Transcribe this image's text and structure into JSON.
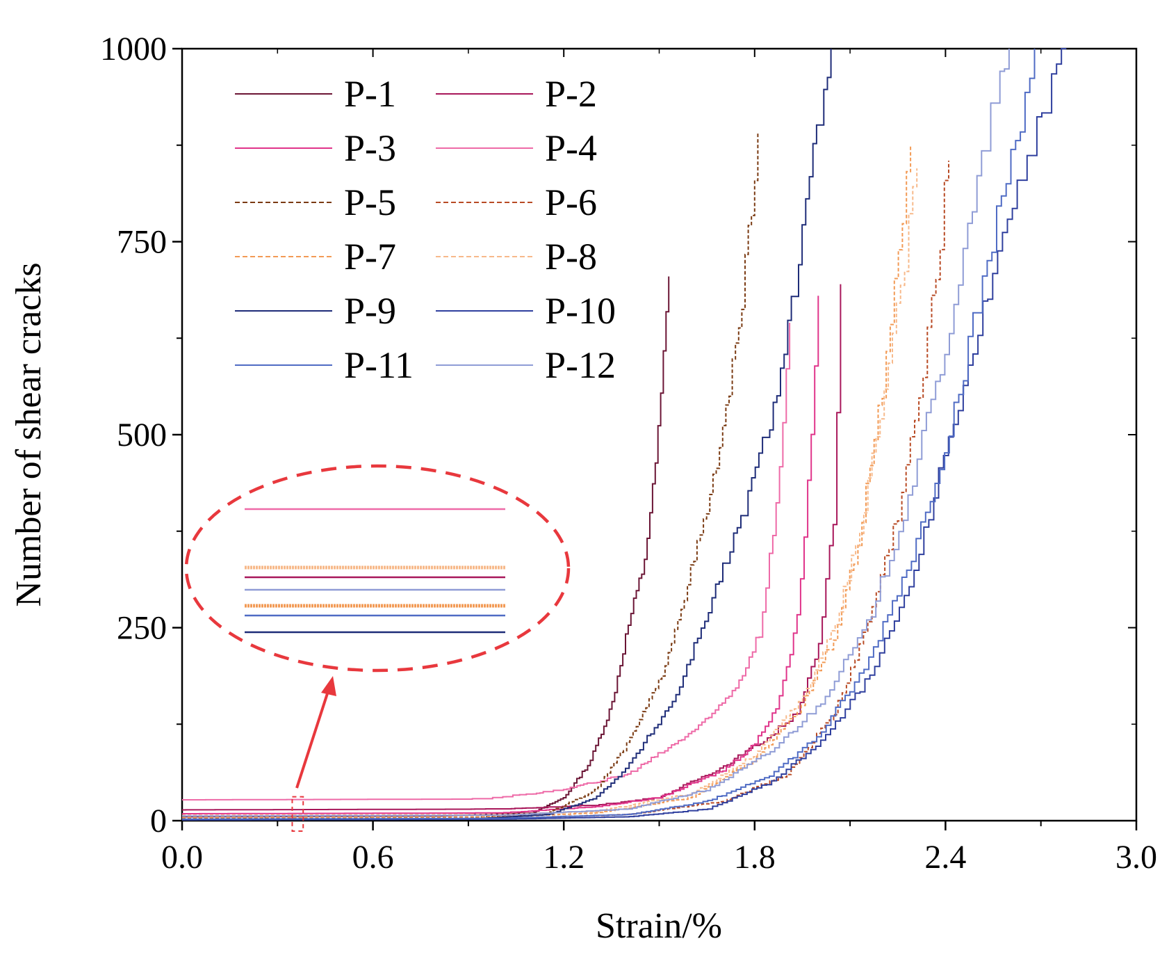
{
  "chart_data": {
    "type": "line",
    "title": "",
    "xlabel": "Strain/%",
    "ylabel": "Number of shear cracks",
    "xlim": [
      0,
      3.0
    ],
    "ylim": [
      0,
      1000
    ],
    "xticks": [
      "0.0",
      "0.6",
      "1.2",
      "1.8",
      "2.4",
      "3.0"
    ],
    "yticks": [
      "0",
      "250",
      "500",
      "750",
      "1000"
    ],
    "legend_position": "top-left",
    "series": [
      {
        "name": "P-1",
        "color": "#6b1535",
        "dash": "solid",
        "end_x": 1.53,
        "end_y": 705,
        "points": [
          [
            0,
            5
          ],
          [
            0.8,
            6
          ],
          [
            1.1,
            10
          ],
          [
            1.2,
            30
          ],
          [
            1.28,
            75
          ],
          [
            1.35,
            150
          ],
          [
            1.4,
            250
          ],
          [
            1.45,
            330
          ],
          [
            1.48,
            430
          ],
          [
            1.5,
            520
          ],
          [
            1.53,
            705
          ]
        ]
      },
      {
        "name": "P-2",
        "color": "#a8175a",
        "dash": "solid",
        "end_x": 2.07,
        "end_y": 695,
        "points": [
          [
            0,
            14
          ],
          [
            1.0,
            15
          ],
          [
            1.3,
            20
          ],
          [
            1.5,
            30
          ],
          [
            1.7,
            70
          ],
          [
            1.85,
            110
          ],
          [
            1.93,
            140
          ],
          [
            2.0,
            220
          ],
          [
            2.05,
            400
          ],
          [
            2.07,
            695
          ]
        ]
      },
      {
        "name": "P-3",
        "color": "#e0348a",
        "dash": "solid",
        "end_x": 2.0,
        "end_y": 680,
        "points": [
          [
            0,
            9
          ],
          [
            1.0,
            10
          ],
          [
            1.3,
            18
          ],
          [
            1.5,
            30
          ],
          [
            1.7,
            65
          ],
          [
            1.8,
            100
          ],
          [
            1.87,
            150
          ],
          [
            1.93,
            250
          ],
          [
            1.97,
            450
          ],
          [
            2.0,
            680
          ]
        ]
      },
      {
        "name": "P-4",
        "color": "#ee6aa7",
        "dash": "solid",
        "end_x": 1.91,
        "end_y": 645,
        "points": [
          [
            0,
            27
          ],
          [
            0.95,
            28
          ],
          [
            1.2,
            40
          ],
          [
            1.4,
            60
          ],
          [
            1.55,
            100
          ],
          [
            1.65,
            130
          ],
          [
            1.75,
            180
          ],
          [
            1.82,
            250
          ],
          [
            1.87,
            420
          ],
          [
            1.91,
            645
          ]
        ]
      },
      {
        "name": "P-5",
        "color": "#7a3a12",
        "dash": "dashed",
        "end_x": 1.81,
        "end_y": 890,
        "points": [
          [
            0,
            3
          ],
          [
            0.9,
            4
          ],
          [
            1.15,
            10
          ],
          [
            1.3,
            40
          ],
          [
            1.4,
            100
          ],
          [
            1.5,
            180
          ],
          [
            1.57,
            280
          ],
          [
            1.65,
            400
          ],
          [
            1.72,
            550
          ],
          [
            1.78,
            750
          ],
          [
            1.81,
            890
          ]
        ]
      },
      {
        "name": "P-6",
        "color": "#b84a24",
        "dash": "dashed",
        "end_x": 2.41,
        "end_y": 855,
        "points": [
          [
            0,
            2
          ],
          [
            1.0,
            3
          ],
          [
            1.4,
            8
          ],
          [
            1.7,
            25
          ],
          [
            1.9,
            60
          ],
          [
            2.05,
            140
          ],
          [
            2.15,
            250
          ],
          [
            2.25,
            400
          ],
          [
            2.33,
            580
          ],
          [
            2.38,
            750
          ],
          [
            2.41,
            855
          ]
        ]
      },
      {
        "name": "P-7",
        "color": "#f29a55",
        "dash": "dashed",
        "end_x": 2.29,
        "end_y": 875,
        "points": [
          [
            0,
            4
          ],
          [
            1.0,
            5
          ],
          [
            1.3,
            10
          ],
          [
            1.6,
            30
          ],
          [
            1.8,
            80
          ],
          [
            1.95,
            150
          ],
          [
            2.05,
            240
          ],
          [
            2.12,
            350
          ],
          [
            2.18,
            500
          ],
          [
            2.23,
            650
          ],
          [
            2.29,
            875
          ]
        ]
      },
      {
        "name": "P-8",
        "color": "#f7b98a",
        "dash": "dashed",
        "end_x": 2.31,
        "end_y": 845,
        "points": [
          [
            0,
            7
          ],
          [
            1.0,
            8
          ],
          [
            1.3,
            12
          ],
          [
            1.6,
            35
          ],
          [
            1.8,
            85
          ],
          [
            1.95,
            160
          ],
          [
            2.05,
            250
          ],
          [
            2.13,
            380
          ],
          [
            2.2,
            540
          ],
          [
            2.26,
            700
          ],
          [
            2.31,
            845
          ]
        ]
      },
      {
        "name": "P-9",
        "color": "#1e2c78",
        "dash": "solid",
        "end_x": 2.04,
        "end_y": 1000,
        "points": [
          [
            0,
            1
          ],
          [
            0.9,
            2
          ],
          [
            1.15,
            8
          ],
          [
            1.3,
            30
          ],
          [
            1.4,
            70
          ],
          [
            1.55,
            160
          ],
          [
            1.65,
            270
          ],
          [
            1.75,
            380
          ],
          [
            1.85,
            520
          ],
          [
            1.93,
            700
          ],
          [
            2.0,
            900
          ],
          [
            2.04,
            1000
          ]
        ]
      },
      {
        "name": "P-10",
        "color": "#2f3f9e",
        "dash": "solid",
        "end_x": 2.78,
        "end_y": 1000,
        "points": [
          [
            0,
            1
          ],
          [
            1.0,
            2
          ],
          [
            1.4,
            5
          ],
          [
            1.65,
            15
          ],
          [
            1.85,
            50
          ],
          [
            2.0,
            100
          ],
          [
            2.15,
            180
          ],
          [
            2.28,
            300
          ],
          [
            2.38,
            450
          ],
          [
            2.48,
            600
          ],
          [
            2.58,
            750
          ],
          [
            2.68,
            880
          ],
          [
            2.78,
            1000
          ]
        ]
      },
      {
        "name": "P-11",
        "color": "#4f6bc4",
        "dash": "solid",
        "end_x": 2.68,
        "end_y": 1000,
        "points": [
          [
            0,
            2
          ],
          [
            1.0,
            3
          ],
          [
            1.4,
            8
          ],
          [
            1.65,
            25
          ],
          [
            1.85,
            60
          ],
          [
            2.0,
            110
          ],
          [
            2.15,
            200
          ],
          [
            2.3,
            350
          ],
          [
            2.42,
            520
          ],
          [
            2.52,
            700
          ],
          [
            2.6,
            850
          ],
          [
            2.68,
            1000
          ]
        ]
      },
      {
        "name": "P-12",
        "color": "#8f9cd6",
        "dash": "solid",
        "end_x": 2.6,
        "end_y": 1000,
        "points": [
          [
            0,
            6
          ],
          [
            1.0,
            7
          ],
          [
            1.4,
            15
          ],
          [
            1.65,
            40
          ],
          [
            1.85,
            90
          ],
          [
            2.0,
            150
          ],
          [
            2.15,
            250
          ],
          [
            2.27,
            400
          ],
          [
            2.38,
            580
          ],
          [
            2.48,
            780
          ],
          [
            2.55,
            920
          ],
          [
            2.6,
            1000
          ]
        ]
      }
    ],
    "annotation": {
      "type": "zoom-inset",
      "source_region_x": [
        0.32,
        0.42
      ],
      "source_region_y": [
        0,
        40
      ],
      "inset_lines": [
        {
          "series": "P-4",
          "order": 1
        },
        {
          "series": "P-8",
          "order": 2
        },
        {
          "series": "P-2",
          "order": 3
        },
        {
          "series": "P-12",
          "order": 4
        },
        {
          "series": "P-7",
          "order": 5
        },
        {
          "series": "P-11",
          "order": 6
        },
        {
          "series": "P-9",
          "order": 7
        }
      ]
    }
  },
  "colors": {
    "axis": "#000000",
    "annotation": "#e8383d"
  }
}
